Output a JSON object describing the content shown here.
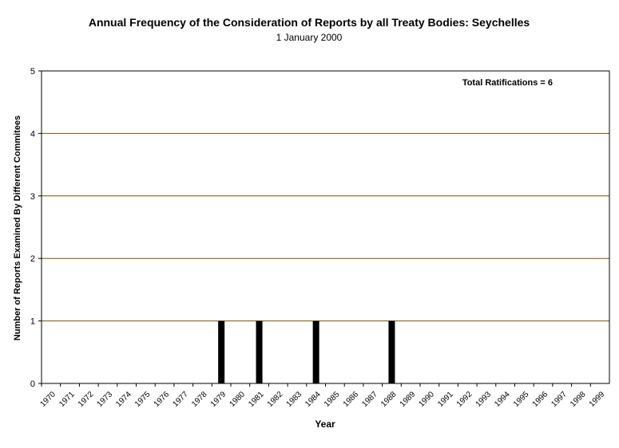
{
  "chart_data": {
    "type": "bar",
    "title": "Annual Frequency of the Consideration of Reports by all Treaty Bodies: Seychelles",
    "subtitle": "1 January 2000",
    "xlabel": "Year",
    "ylabel": "Number of Reports Examined By Different Commitees",
    "annotation": "Total Ratifications = 6",
    "ylim": [
      0,
      5
    ],
    "yticks": [
      "0",
      "1",
      "2",
      "3",
      "4",
      "5"
    ],
    "grid": true,
    "categories": [
      "1970",
      "1971",
      "1972",
      "1973",
      "1974",
      "1975",
      "1976",
      "1977",
      "1978",
      "1979",
      "1980",
      "1981",
      "1982",
      "1983",
      "1984",
      "1985",
      "1986",
      "1987",
      "1988",
      "1989",
      "1990",
      "1991",
      "1992",
      "1993",
      "1994",
      "1995",
      "1996",
      "1997",
      "1998",
      "1999"
    ],
    "values": [
      0,
      0,
      0,
      0,
      0,
      0,
      0,
      0,
      0,
      1,
      0,
      1,
      0,
      0,
      1,
      0,
      0,
      0,
      1,
      0,
      0,
      0,
      0,
      0,
      0,
      0,
      0,
      0,
      0,
      0
    ],
    "colors": {
      "bar": "#000000",
      "gridline": "#7a5200",
      "frame": "#000000",
      "title": "#000000",
      "axis_text": "#000000"
    }
  }
}
